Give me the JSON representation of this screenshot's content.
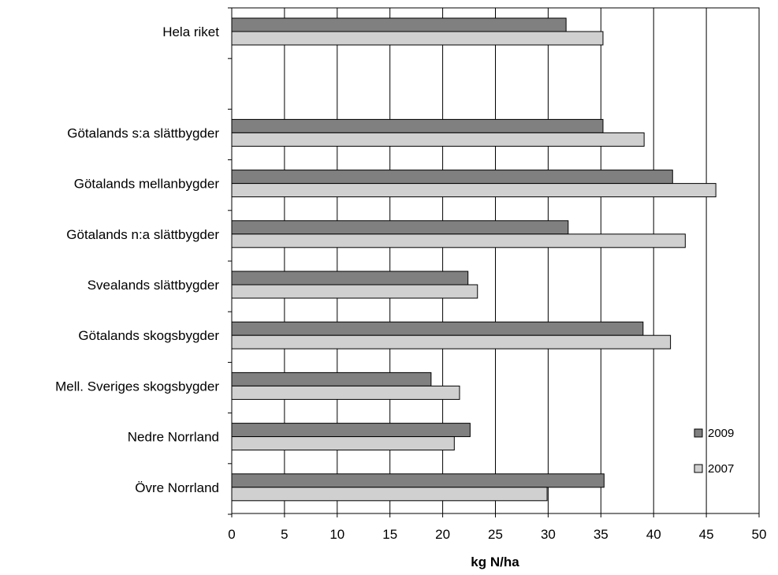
{
  "chart_data": {
    "type": "bar",
    "orientation": "horizontal",
    "title": "",
    "xlabel": "kg N/ha",
    "ylabel": "",
    "xlim": [
      0,
      50
    ],
    "xticks": [
      "0",
      "5",
      "10",
      "15",
      "20",
      "25",
      "30",
      "35",
      "40",
      "45",
      "50"
    ],
    "grid": "vertical",
    "legend_position": "bottom-right",
    "categories": [
      "Hela riket",
      "",
      "Götalands s:a slättbygder",
      "Götalands mellanbygder",
      "Götalands n:a slättbygder",
      "Svealands slättbygder",
      "Götalands skogsbygder",
      "Mell. Sveriges skogsbygder",
      "Nedre Norrland",
      "Övre Norrland"
    ],
    "series": [
      {
        "name": "2009",
        "color": "#808080",
        "values": [
          31.7,
          null,
          35.2,
          41.8,
          31.9,
          22.4,
          39.0,
          18.9,
          22.6,
          35.3
        ]
      },
      {
        "name": "2007",
        "color": "#d0d0d0",
        "values": [
          35.2,
          null,
          39.1,
          45.9,
          43.0,
          23.3,
          41.6,
          21.6,
          21.1,
          29.9
        ]
      }
    ]
  }
}
